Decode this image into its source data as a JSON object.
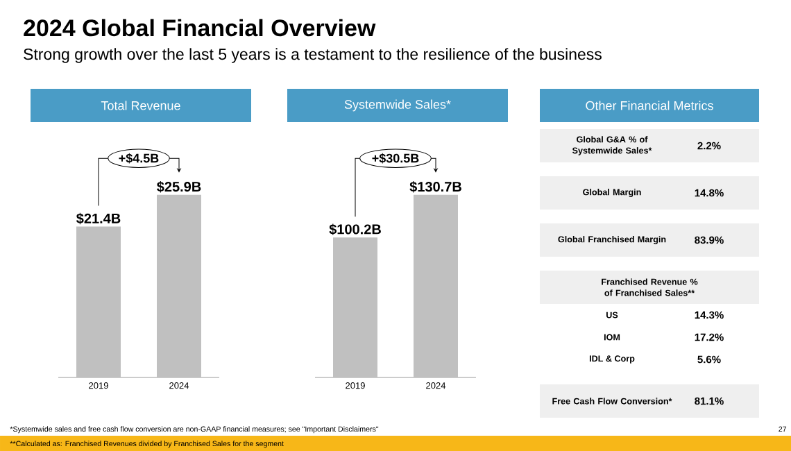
{
  "chart_data": [
    {
      "type": "other",
      "title": "2024 Global Financial Overview",
      "subtitle": "Strong growth over the last 5 years is a testament to the resilience of the business",
      "annotations": [
        "*Systemwide sales and free cash flow conversion are non-GAAP financial measures; see \"Important Disclaimers\"",
        "**Calculated as: Franchised Revenues divided by Franchised Sales for the segment",
        "27"
      ]
    },
    {
      "type": "bar",
      "title": "Total Revenue",
      "categories": [
        "2019",
        "2024"
      ],
      "values": [
        21.4,
        25.9
      ],
      "color": "#c0c0c0",
      "value_labels": [
        "$21.4B",
        "$25.9B"
      ],
      "annotations": [
        "+$4.5B"
      ]
    },
    {
      "type": "bar",
      "title": "Systemwide Sales*",
      "categories": [
        "2019",
        "2024"
      ],
      "values": [
        100.2,
        130.7
      ],
      "color": "#c0c0c0",
      "value_labels": [
        "$100.2B",
        "$130.7B"
      ],
      "annotations": [
        "+$30.5B"
      ]
    },
    {
      "type": "other",
      "title": "Other Financial Metrics",
      "annotations": [
        "Global G&A % of Systemwide Sales*",
        "2.2%",
        "Global Margin",
        "14.8%",
        "Global Franchised Margin",
        "83.9%",
        "Franchised Revenue % of Franchised Sales**",
        "US",
        "14.3%",
        "IOM",
        "17.2%",
        "IDL & Corp",
        "5.6%",
        "Free Cash Flow Conversion*",
        "81.1%"
      ]
    }
  ]
}
